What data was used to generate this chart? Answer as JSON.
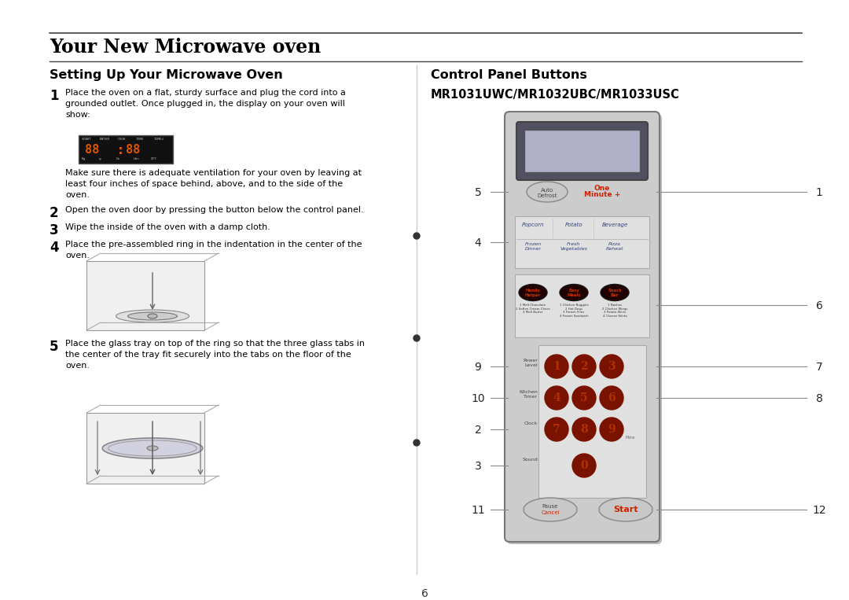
{
  "title": "Your New Microwave oven",
  "left_section_title": "Setting Up Your Microwave Oven",
  "right_section_title": "Control Panel Buttons",
  "model_number": "MR1031UWC/MR1032UBC/MR1033USC",
  "page_number": "6",
  "step1_text": "Place the oven on a flat, sturdy surface and plug the cord into a\ngrounded outlet. Once plugged in, the display on your oven will\nshow:",
  "step1_extra": "Make sure there is adequate ventilation for your oven by leaving at\nleast four inches of space behind, above, and to the side of the\noven.",
  "step2_text": "Open the oven door by pressing the button below the control panel.",
  "step3_text": "Wipe the inside of the oven with a damp cloth.",
  "step4_text": "Place the pre-assembled ring in the indentation in the center of the\noven.",
  "step5_text": "Place the glass tray on top of the ring so that the three glass tabs in\nthe center of the tray fit securely into the tabs on the floor of the\noven.",
  "bg_color": "#ffffff",
  "text_color": "#000000",
  "red_color": "#cc2200",
  "dark_red_btn": "#7a1200",
  "panel_bg": "#d0d0d0",
  "panel_border": "#888888",
  "display_top_bg": "#4a4a5a",
  "display_screen_bg": "#b8b8cc",
  "ac_section_bg": "#e4e4e4",
  "sc_section_bg": "#e4e4e4",
  "np_section_bg": "#e4e4e4",
  "btn_num_color": "#b03000",
  "label_line_color": "#888888",
  "divider_color": "#999999",
  "bullet_color": "#333333"
}
